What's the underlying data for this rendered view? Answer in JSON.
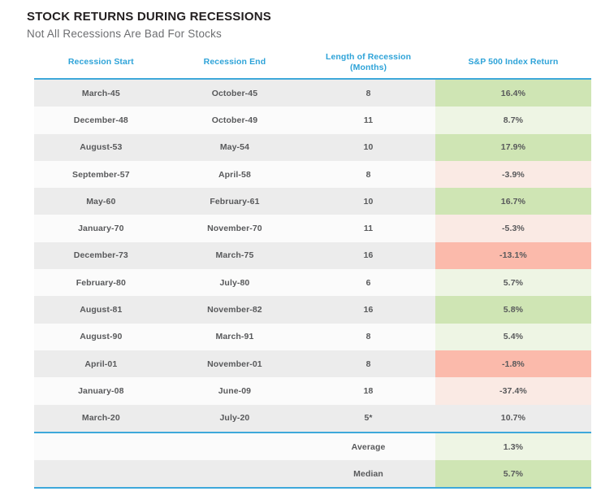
{
  "page": {
    "title": "STOCK RETURNS DURING RECESSIONS",
    "subtitle": "Not All Recessions Are Bad For Stocks"
  },
  "colors": {
    "title_text": "#231f20",
    "subtitle_text": "#6d6e71",
    "header_text": "#2ea3d8",
    "rule_blue": "#3ea8da",
    "row_gray": "#ececec",
    "row_white": "#fbfbfb",
    "strong_green": "#cfe5b4",
    "light_green": "#eef5e4",
    "strong_red": "#fbbaab",
    "light_red": "#faeae4",
    "cell_text": "#58595b"
  },
  "table": {
    "headers": [
      "Recession Start",
      "Recession End",
      "Length of Recession\n(Months)",
      "S&P 500 Index Return"
    ],
    "rows": [
      {
        "start": "March-45",
        "end": "October-45",
        "length": "8",
        "return": "16.4%",
        "tone": "strong-green"
      },
      {
        "start": "December-48",
        "end": "October-49",
        "length": "11",
        "return": "8.7%",
        "tone": "light-green"
      },
      {
        "start": "August-53",
        "end": "May-54",
        "length": "10",
        "return": "17.9%",
        "tone": "strong-green"
      },
      {
        "start": "September-57",
        "end": "April-58",
        "length": "8",
        "return": "-3.9%",
        "tone": "light-red"
      },
      {
        "start": "May-60",
        "end": "February-61",
        "length": "10",
        "return": "16.7%",
        "tone": "strong-green"
      },
      {
        "start": "January-70",
        "end": "November-70",
        "length": "11",
        "return": "-5.3%",
        "tone": "light-red"
      },
      {
        "start": "December-73",
        "end": "March-75",
        "length": "16",
        "return": "-13.1%",
        "tone": "strong-red"
      },
      {
        "start": "February-80",
        "end": "July-80",
        "length": "6",
        "return": "5.7%",
        "tone": "light-green"
      },
      {
        "start": "August-81",
        "end": "November-82",
        "length": "16",
        "return": "5.8%",
        "tone": "strong-green"
      },
      {
        "start": "August-90",
        "end": "March-91",
        "length": "8",
        "return": "5.4%",
        "tone": "light-green"
      },
      {
        "start": "April-01",
        "end": "November-01",
        "length": "8",
        "return": "-1.8%",
        "tone": "strong-red"
      },
      {
        "start": "January-08",
        "end": "June-09",
        "length": "18",
        "return": "-37.4%",
        "tone": "light-red"
      },
      {
        "start": "March-20",
        "end": "July-20",
        "length": "5*",
        "return": "10.7%",
        "tone": "neutral"
      }
    ],
    "summary": [
      {
        "label": "Average",
        "value": "1.3%",
        "tone": "light-green",
        "band": "white"
      },
      {
        "label": "Median",
        "value": "5.7%",
        "tone": "strong-green",
        "band": "gray"
      }
    ]
  },
  "chart_data": {
    "type": "table",
    "title": "STOCK RETURNS DURING RECESSIONS",
    "subtitle": "Not All Recessions Are Bad For Stocks",
    "columns": [
      "Recession Start",
      "Recession End",
      "Length of Recession (Months)",
      "S&P 500 Index Return"
    ],
    "rows": [
      [
        "March-45",
        "October-45",
        8,
        16.4
      ],
      [
        "December-48",
        "October-49",
        11,
        8.7
      ],
      [
        "August-53",
        "May-54",
        10,
        17.9
      ],
      [
        "September-57",
        "April-58",
        8,
        -3.9
      ],
      [
        "May-60",
        "February-61",
        10,
        16.7
      ],
      [
        "January-70",
        "November-70",
        11,
        -5.3
      ],
      [
        "December-73",
        "March-75",
        16,
        -13.1
      ],
      [
        "February-80",
        "July-80",
        6,
        5.7
      ],
      [
        "August-81",
        "November-82",
        16,
        5.8
      ],
      [
        "August-90",
        "March-91",
        8,
        5.4
      ],
      [
        "April-01",
        "November-01",
        8,
        -1.8
      ],
      [
        "January-08",
        "June-09",
        18,
        -37.4
      ],
      [
        "March-20",
        "July-20",
        "5*",
        10.7
      ]
    ],
    "summary": {
      "Average": 1.3,
      "Median": 5.7
    },
    "notes": "Return column tinted green for positive, red for negative; saturated tint on gray-striped rows, light tint on white rows"
  }
}
